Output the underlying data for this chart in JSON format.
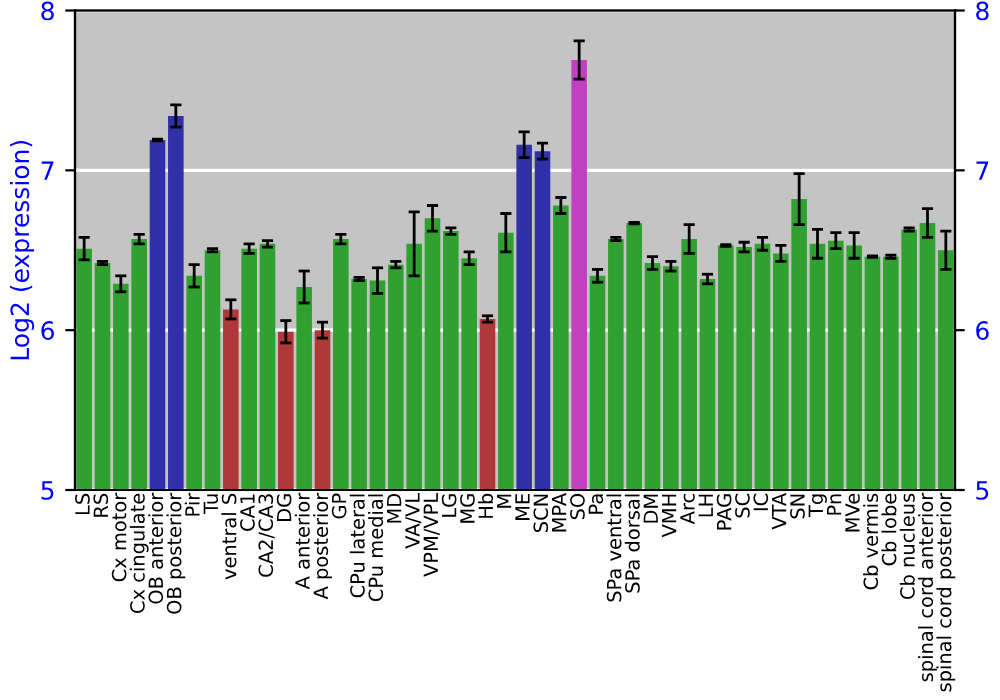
{
  "chart_data": {
    "type": "bar",
    "ylabel": "Log2 (expression)",
    "categories": [
      "LS",
      "RS",
      "Cx motor",
      "Cx cingulate",
      "OB anterior",
      "OB posterior",
      "Pir",
      "Tu",
      "ventral S",
      "CA1",
      "CA2/CA3",
      "DG",
      "A anterior",
      "A posterior",
      "GP",
      "CPu lateral",
      "CPu medial",
      "MD",
      "VA/VL",
      "VPM/VPL",
      "LG",
      "MG",
      "Hb",
      "M",
      "ME",
      "SCN",
      "MPA",
      "SO",
      "Pa",
      "SPa ventral",
      "SPa dorsal",
      "DM",
      "VMH",
      "Arc",
      "LH",
      "PAG",
      "SC",
      "IC",
      "VTA",
      "SN",
      "Tg",
      "Pn",
      "MVe",
      "Cb vermis",
      "Cb lobe",
      "Cb nucleus",
      "spinal cord anterior",
      "spinal cord posterior"
    ],
    "values": [
      6.51,
      6.42,
      6.29,
      6.57,
      7.19,
      7.34,
      6.34,
      6.5,
      6.13,
      6.51,
      6.54,
      5.99,
      6.27,
      6.0,
      6.57,
      6.32,
      6.31,
      6.41,
      6.54,
      6.7,
      6.62,
      6.45,
      6.07,
      6.61,
      7.16,
      7.12,
      6.78,
      7.69,
      6.34,
      6.57,
      6.67,
      6.42,
      6.4,
      6.57,
      6.32,
      6.53,
      6.52,
      6.54,
      6.48,
      6.82,
      6.54,
      6.56,
      6.53,
      6.46,
      6.46,
      6.63,
      6.67,
      6.5
    ],
    "errors": [
      0.07,
      0.01,
      0.05,
      0.03,
      0.005,
      0.07,
      0.07,
      0.01,
      0.06,
      0.03,
      0.02,
      0.07,
      0.1,
      0.05,
      0.03,
      0.01,
      0.08,
      0.02,
      0.2,
      0.08,
      0.02,
      0.04,
      0.02,
      0.12,
      0.08,
      0.05,
      0.05,
      0.12,
      0.04,
      0.01,
      0.005,
      0.04,
      0.03,
      0.09,
      0.03,
      0.005,
      0.03,
      0.04,
      0.05,
      0.16,
      0.09,
      0.05,
      0.08,
      0.005,
      0.01,
      0.01,
      0.09,
      0.12
    ],
    "colors": [
      "#30a030",
      "#30a030",
      "#30a030",
      "#30a030",
      "#3030a8",
      "#3030a8",
      "#30a030",
      "#30a030",
      "#b03838",
      "#30a030",
      "#30a030",
      "#b03838",
      "#30a030",
      "#b03838",
      "#30a030",
      "#30a030",
      "#30a030",
      "#30a030",
      "#30a030",
      "#30a030",
      "#30a030",
      "#30a030",
      "#b03838",
      "#30a030",
      "#3030a8",
      "#3030a8",
      "#30a030",
      "#c040c0",
      "#30a030",
      "#30a030",
      "#30a030",
      "#30a030",
      "#30a030",
      "#30a030",
      "#30a030",
      "#30a030",
      "#30a030",
      "#30a030",
      "#30a030",
      "#30a030",
      "#30a030",
      "#30a030",
      "#30a030",
      "#30a030",
      "#30a030",
      "#30a030",
      "#30a030",
      "#30a030"
    ],
    "ylim": [
      5,
      8
    ],
    "yticks": [
      5,
      6,
      7,
      8
    ],
    "y2lim": [
      5,
      8
    ],
    "y2ticks": [
      5,
      6,
      7,
      8
    ],
    "grid": "y"
  }
}
